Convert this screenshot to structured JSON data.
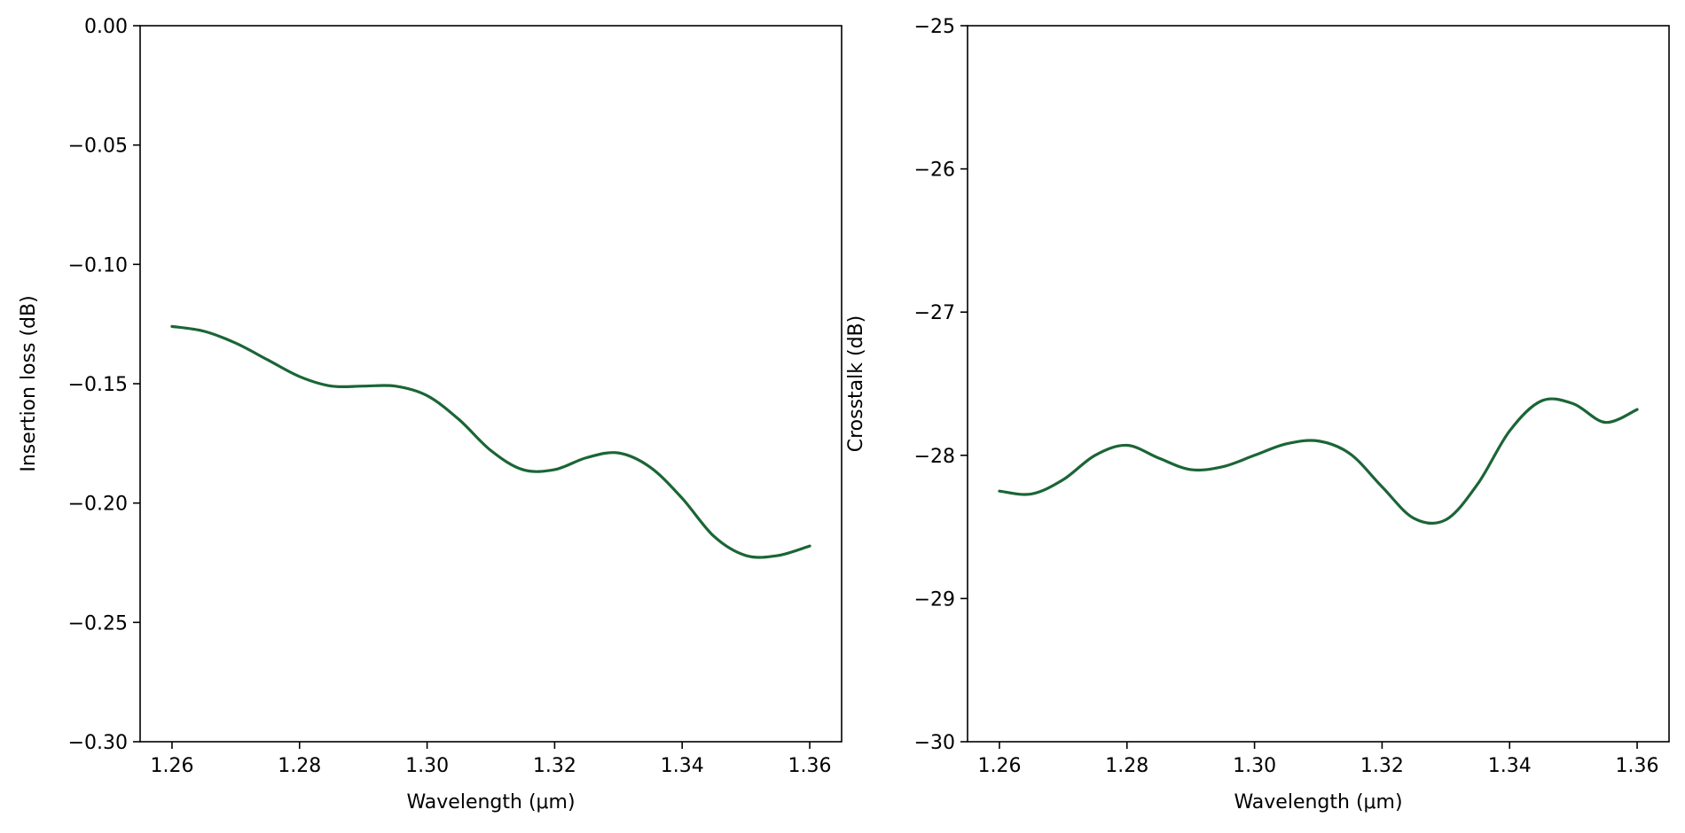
{
  "chart_data": [
    {
      "type": "line",
      "xlabel": "Wavelength (μm)",
      "ylabel": "Insertion loss (dB)",
      "xlim": [
        1.255,
        1.365
      ],
      "ylim": [
        -0.3,
        0.0
      ],
      "xticks": [
        1.26,
        1.28,
        1.3,
        1.32,
        1.34,
        1.36
      ],
      "xtick_labels": [
        "1.26",
        "1.28",
        "1.30",
        "1.32",
        "1.34",
        "1.36"
      ],
      "yticks": [
        0.0,
        -0.05,
        -0.1,
        -0.15,
        -0.2,
        -0.25,
        -0.3
      ],
      "ytick_labels": [
        "0.00",
        "−0.05",
        "−0.10",
        "−0.15",
        "−0.20",
        "−0.25",
        "−0.30"
      ],
      "grid": false,
      "series": [
        {
          "color": "#1b6536",
          "x": [
            1.26,
            1.265,
            1.27,
            1.275,
            1.28,
            1.285,
            1.29,
            1.295,
            1.3,
            1.305,
            1.31,
            1.315,
            1.32,
            1.325,
            1.33,
            1.335,
            1.34,
            1.345,
            1.35,
            1.355,
            1.36
          ],
          "y": [
            -0.126,
            -0.128,
            -0.133,
            -0.14,
            -0.147,
            -0.151,
            -0.151,
            -0.151,
            -0.155,
            -0.165,
            -0.178,
            -0.186,
            -0.186,
            -0.181,
            -0.179,
            -0.185,
            -0.198,
            -0.214,
            -0.222,
            -0.222,
            -0.218
          ]
        }
      ]
    },
    {
      "type": "line",
      "xlabel": "Wavelength (μm)",
      "ylabel": "Crosstalk (dB)",
      "xlim": [
        1.255,
        1.365
      ],
      "ylim": [
        -30,
        -25
      ],
      "xticks": [
        1.26,
        1.28,
        1.3,
        1.32,
        1.34,
        1.36
      ],
      "xtick_labels": [
        "1.26",
        "1.28",
        "1.30",
        "1.32",
        "1.34",
        "1.36"
      ],
      "yticks": [
        -25,
        -26,
        -27,
        -28,
        -29,
        -30
      ],
      "ytick_labels": [
        "−25",
        "−26",
        "−27",
        "−28",
        "−29",
        "−30"
      ],
      "grid": false,
      "series": [
        {
          "color": "#1b6536",
          "x": [
            1.26,
            1.265,
            1.27,
            1.275,
            1.28,
            1.285,
            1.29,
            1.295,
            1.3,
            1.305,
            1.31,
            1.315,
            1.32,
            1.325,
            1.33,
            1.335,
            1.34,
            1.345,
            1.35,
            1.355,
            1.36
          ],
          "y": [
            -28.25,
            -28.27,
            -28.17,
            -28.0,
            -27.93,
            -28.02,
            -28.1,
            -28.08,
            -28.0,
            -27.92,
            -27.9,
            -27.99,
            -28.22,
            -28.44,
            -28.45,
            -28.2,
            -27.83,
            -27.62,
            -27.64,
            -27.77,
            -27.68
          ]
        }
      ]
    }
  ]
}
